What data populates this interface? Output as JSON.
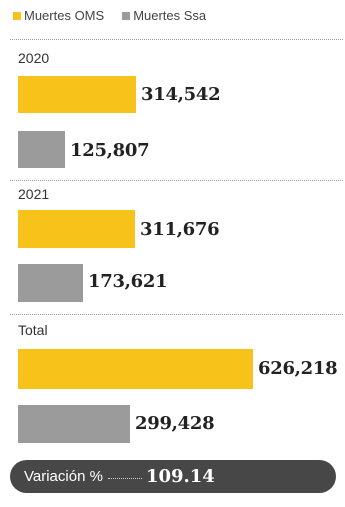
{
  "legend": {
    "oms": "Muertes OMS",
    "ssa": "Muertes Ssa"
  },
  "colors": {
    "oms": "#F7C21A",
    "ssa": "#9B9B9B"
  },
  "groups": [
    {
      "label": "2020",
      "oms_text": "314,542",
      "ssa_text": "125,807"
    },
    {
      "label": "2021",
      "oms_text": "311,676",
      "ssa_text": "173,621"
    },
    {
      "label": "Total",
      "oms_text": "626,218",
      "ssa_text": "299,428"
    }
  ],
  "variation": {
    "label": "Variación %",
    "value": "109.14"
  },
  "chart_data": {
    "type": "bar",
    "orientation": "horizontal",
    "categories": [
      "2020",
      "2021",
      "Total"
    ],
    "series": [
      {
        "name": "Muertes OMS",
        "values": [
          314542,
          311676,
          626218
        ]
      },
      {
        "name": "Muertes Ssa",
        "values": [
          125807,
          173621,
          299428
        ]
      }
    ],
    "legend_position": "top-left",
    "grid": false
  }
}
